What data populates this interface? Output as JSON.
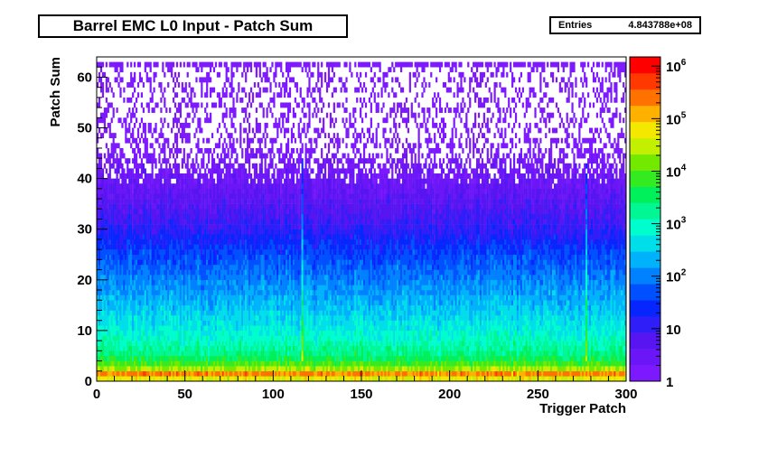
{
  "title": "Barrel EMC L0 Input - Patch Sum",
  "stats": {
    "label": "Entries",
    "value": "4.843788e+08"
  },
  "chart_data": {
    "type": "heatmap",
    "title": "Barrel EMC L0 Input - Patch Sum",
    "xlabel": "Trigger Patch",
    "ylabel": "Patch Sum",
    "xlim": [
      0,
      300
    ],
    "ylim": [
      0,
      64
    ],
    "x_ticks": [
      "0",
      "50",
      "100",
      "150",
      "200",
      "250",
      "300"
    ],
    "y_ticks": [
      "0",
      "10",
      "20",
      "30",
      "40",
      "50",
      "60"
    ],
    "z_scale": "log",
    "z_range": [
      1,
      1500000
    ],
    "z_ticks": [
      {
        "base": "1",
        "exp": ""
      },
      {
        "base": "10",
        "exp": ""
      },
      {
        "base": "10",
        "exp": "2"
      },
      {
        "base": "10",
        "exp": "3"
      },
      {
        "base": "10",
        "exp": "4"
      },
      {
        "base": "10",
        "exp": "5"
      },
      {
        "base": "10",
        "exp": "6"
      }
    ],
    "x_bins": 300,
    "y_bins": 64,
    "profile_description": "log10 counts approx: y=1 ~6.0, y=2 ~4.6, y=5 ~3.4, y=10 ~2.8, y=20 ~2.0, y=30 ~1.1, y=40 ~0.5; sparse above 45; dense row at y=62",
    "profile_log10": [
      [
        0,
        3.3
      ],
      [
        1,
        6.0
      ],
      [
        2,
        4.6
      ],
      [
        3,
        4.1
      ],
      [
        5,
        3.4
      ],
      [
        8,
        3.0
      ],
      [
        10,
        2.8
      ],
      [
        15,
        2.4
      ],
      [
        20,
        2.0
      ],
      [
        25,
        1.6
      ],
      [
        30,
        1.1
      ],
      [
        35,
        0.75
      ],
      [
        40,
        0.45
      ],
      [
        45,
        0.2
      ],
      [
        50,
        0.05
      ],
      [
        64,
        0.0
      ]
    ],
    "noisy_columns": [
      116,
      277
    ]
  }
}
